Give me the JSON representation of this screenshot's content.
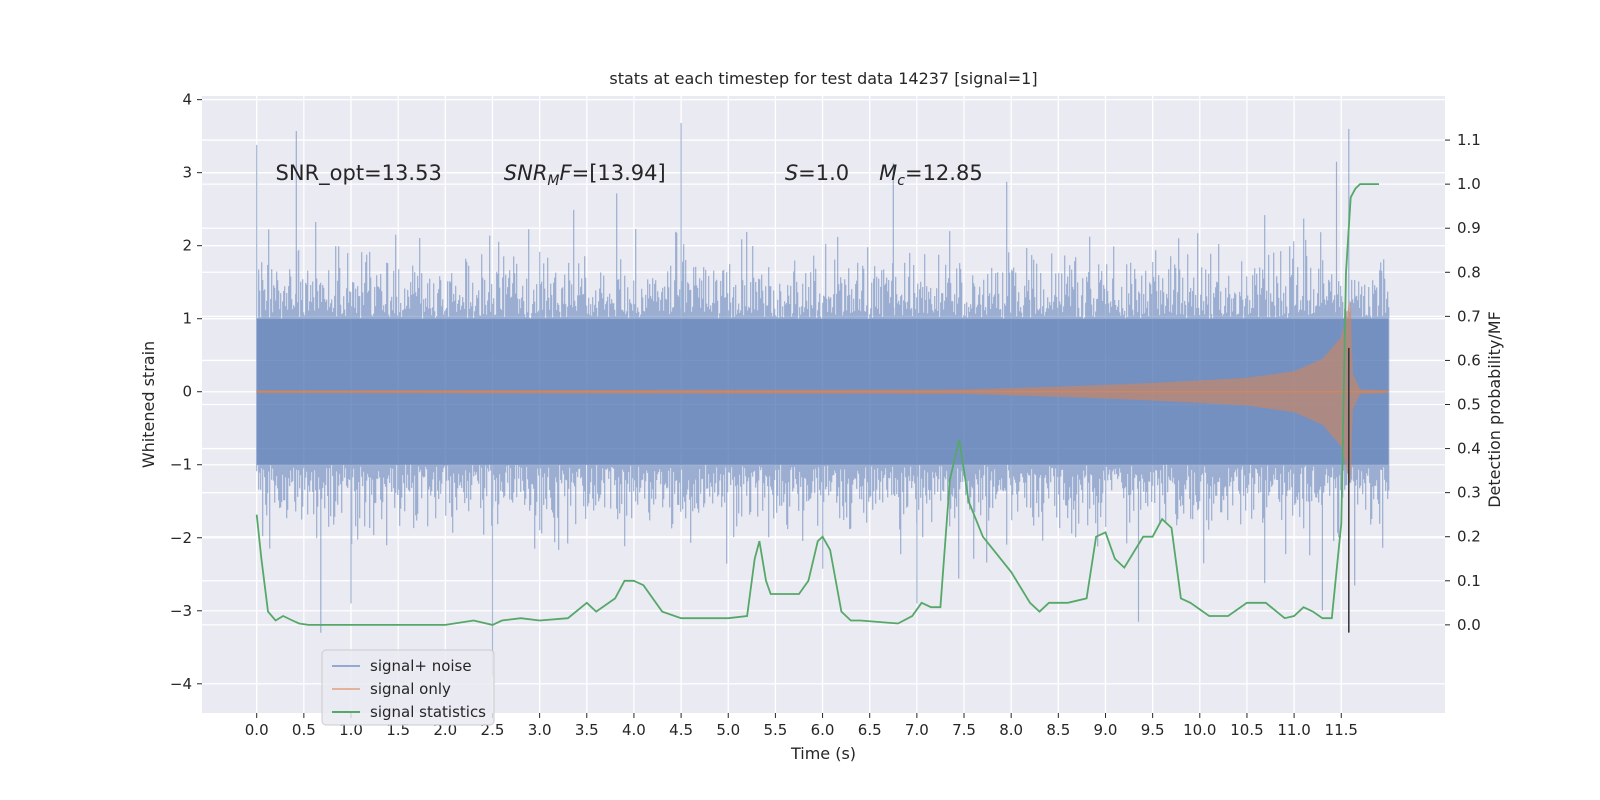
{
  "chart_data": {
    "type": "line",
    "title": "stats at each timestep for test data 14237 [signal=1]",
    "xlabel": "Time (s)",
    "ylabel": "Whitened strain",
    "ylabel_right": "Detection probability/MF",
    "xlim": [
      -0.58,
      12.6
    ],
    "ylim": [
      -4.4,
      4.05
    ],
    "ylim_right": [
      -0.2,
      1.2
    ],
    "x_ticks": [
      0.0,
      0.5,
      1.0,
      1.5,
      2.0,
      2.5,
      3.0,
      3.5,
      4.0,
      4.5,
      5.0,
      5.5,
      6.0,
      6.5,
      7.0,
      7.5,
      8.0,
      8.5,
      9.0,
      9.5,
      10.0,
      10.5,
      11.0,
      11.5
    ],
    "x_tick_labels": [
      "0.0",
      "0.5",
      "1.0",
      "1.5",
      "2.0",
      "2.5",
      "3.0",
      "3.5",
      "4.0",
      "4.5",
      "5.0",
      "5.5",
      "6.0",
      "6.5",
      "7.0",
      "7.5",
      "8.0",
      "8.5",
      "9.0",
      "9.5",
      "10.0",
      "10.5",
      "11.0",
      "11.5"
    ],
    "y_ticks": [
      -4,
      -3,
      -2,
      -1,
      0,
      1,
      2,
      3,
      4
    ],
    "y_tick_labels": [
      "−4",
      "−3",
      "−2",
      "−1",
      "0",
      "1",
      "2",
      "3",
      "4"
    ],
    "y_ticks_right": [
      0.0,
      0.1,
      0.2,
      0.3,
      0.4,
      0.5,
      0.6,
      0.7,
      0.8,
      0.9,
      1.0,
      1.1
    ],
    "y_tick_labels_right": [
      "0.0",
      "0.1",
      "0.2",
      "0.3",
      "0.4",
      "0.5",
      "0.6",
      "0.7",
      "0.8",
      "0.9",
      "1.0",
      "1.1"
    ],
    "grid": true,
    "legend_placement": "lower-left",
    "background": "#eaeaf2",
    "colors": {
      "signal_noise": "#4c72b0",
      "signal_only": "#dd8452",
      "signal_statistics": "#55a868",
      "merger_line": "#333333"
    },
    "annotations": [
      {
        "text": "SNR_opt=13.53",
        "x": 0.2,
        "y": 2.9,
        "style": "normal"
      },
      {
        "base": "SNR",
        "sub": "M",
        "rest": "F=[13.94]",
        "x": 2.62,
        "y": 2.9,
        "style": "math"
      },
      {
        "base": "S",
        "sub": "",
        "rest": "=1.0",
        "x": 5.6,
        "y": 2.9,
        "style": "math"
      },
      {
        "base": "M",
        "sub": "c",
        "rest": "=12.85",
        "x": 6.6,
        "y": 2.9,
        "style": "math"
      }
    ],
    "series": [
      {
        "name": "signal+ noise",
        "axis": "left",
        "type": "noise_band",
        "x_range": [
          0.0,
          12.0
        ],
        "typical_amplitude": 1.0,
        "max": 3.68,
        "min": -3.9,
        "peaks": [
          {
            "x": 0.0,
            "y": 3.38
          },
          {
            "x": 0.42,
            "y": 3.57
          },
          {
            "x": 4.5,
            "y": 3.68
          },
          {
            "x": 11.45,
            "y": 3.15
          },
          {
            "x": 11.58,
            "y": 3.6
          },
          {
            "x": 6.75,
            "y": 3.13
          },
          {
            "x": 2.5,
            "y": -3.9
          },
          {
            "x": 0.68,
            "y": -3.3
          },
          {
            "x": 9.35,
            "y": -3.15
          },
          {
            "x": 11.3,
            "y": -3.0
          },
          {
            "x": 7.0,
            "y": -2.9
          },
          {
            "x": 1.0,
            "y": -2.9
          }
        ]
      },
      {
        "name": "signal only",
        "axis": "left",
        "type": "chirp",
        "envelope": [
          {
            "x": 0.0,
            "y": 0.02
          },
          {
            "x": 7.5,
            "y": 0.03
          },
          {
            "x": 8.5,
            "y": 0.07
          },
          {
            "x": 9.5,
            "y": 0.12
          },
          {
            "x": 10.5,
            "y": 0.19
          },
          {
            "x": 11.0,
            "y": 0.28
          },
          {
            "x": 11.3,
            "y": 0.45
          },
          {
            "x": 11.5,
            "y": 0.75
          },
          {
            "x": 11.6,
            "y": 1.3
          },
          {
            "x": 11.62,
            "y": 0.25
          },
          {
            "x": 11.7,
            "y": 0.03
          },
          {
            "x": 12.0,
            "y": 0.02
          }
        ]
      },
      {
        "name": "signal statistics",
        "axis": "right",
        "x": [
          0.0,
          0.05,
          0.12,
          0.2,
          0.28,
          0.38,
          0.45,
          0.55,
          0.7,
          1.0,
          1.5,
          2.0,
          2.3,
          2.5,
          2.6,
          2.8,
          3.0,
          3.3,
          3.5,
          3.6,
          3.8,
          3.9,
          4.0,
          4.1,
          4.3,
          4.5,
          4.8,
          5.0,
          5.2,
          5.28,
          5.33,
          5.4,
          5.45,
          5.55,
          5.65,
          5.75,
          5.85,
          5.95,
          6.0,
          6.08,
          6.2,
          6.3,
          6.4,
          6.8,
          6.95,
          7.05,
          7.15,
          7.25,
          7.35,
          7.45,
          7.55,
          7.7,
          8.0,
          8.2,
          8.3,
          8.4,
          8.6,
          8.8,
          8.9,
          9.0,
          9.1,
          9.2,
          9.4,
          9.5,
          9.6,
          9.7,
          9.8,
          9.9,
          10.1,
          10.3,
          10.5,
          10.7,
          10.9,
          11.0,
          11.1,
          11.2,
          11.3,
          11.4,
          11.5,
          11.55,
          11.6,
          11.65,
          11.7,
          11.8,
          11.9
        ],
        "values": [
          0.25,
          0.15,
          0.03,
          0.01,
          0.02,
          0.01,
          0.003,
          0.0,
          0.0,
          0.0,
          0.0,
          0.0,
          0.01,
          0.0,
          0.01,
          0.015,
          0.01,
          0.015,
          0.05,
          0.03,
          0.06,
          0.1,
          0.1,
          0.09,
          0.03,
          0.015,
          0.015,
          0.015,
          0.02,
          0.15,
          0.19,
          0.1,
          0.07,
          0.07,
          0.07,
          0.07,
          0.1,
          0.19,
          0.2,
          0.17,
          0.03,
          0.01,
          0.01,
          0.003,
          0.02,
          0.05,
          0.04,
          0.04,
          0.33,
          0.42,
          0.28,
          0.2,
          0.12,
          0.05,
          0.03,
          0.05,
          0.05,
          0.06,
          0.2,
          0.21,
          0.15,
          0.13,
          0.2,
          0.2,
          0.24,
          0.22,
          0.06,
          0.05,
          0.02,
          0.02,
          0.05,
          0.05,
          0.015,
          0.02,
          0.04,
          0.03,
          0.015,
          0.015,
          0.23,
          0.8,
          0.97,
          0.99,
          1.0,
          1.0,
          1.0
        ]
      }
    ],
    "merger_marker": {
      "x": 11.58,
      "y_from": -3.3,
      "y_to": 0.6
    }
  },
  "legend": {
    "items": [
      {
        "label": "signal+ noise",
        "color": "#4c72b0"
      },
      {
        "label": "signal only",
        "color": "#dd8452"
      },
      {
        "label": "signal statistics",
        "color": "#55a868"
      }
    ]
  }
}
